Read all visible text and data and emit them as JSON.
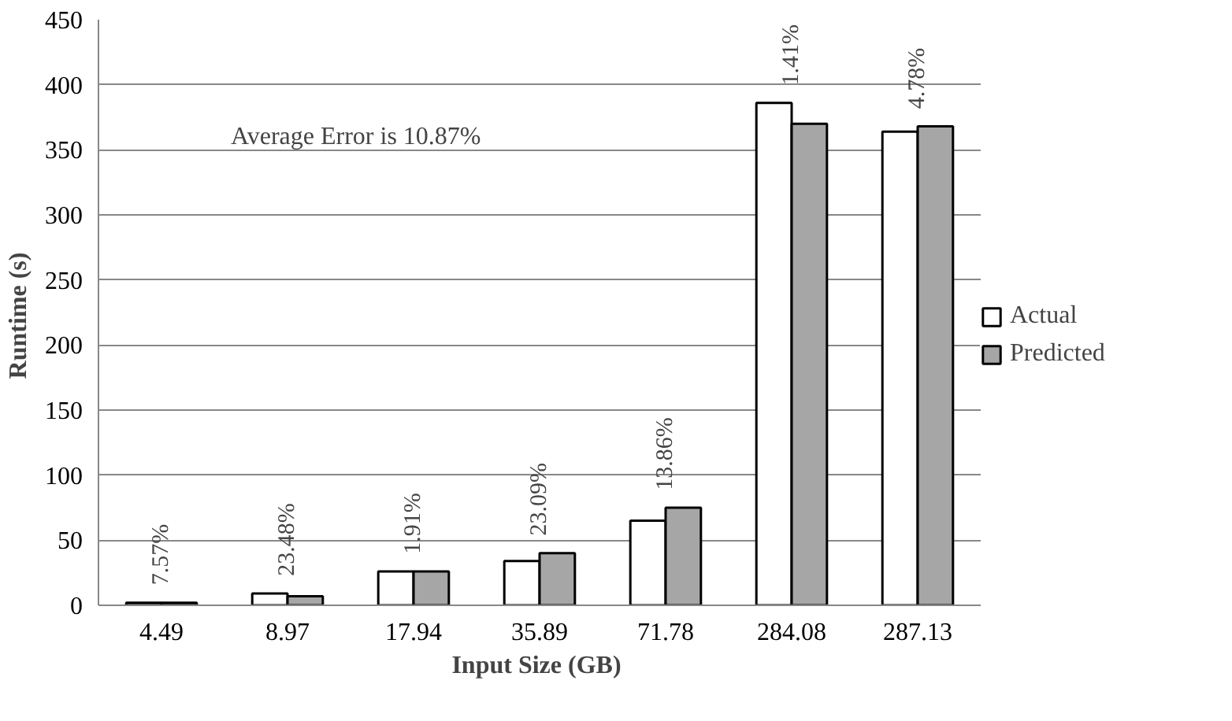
{
  "chart_data": {
    "type": "bar",
    "xlabel": "Input  Size (GB)",
    "ylabel": "Runtime  (s)",
    "categories": [
      "4.49",
      "8.97",
      "17.94",
      "35.89",
      "71.78",
      "284.08",
      "287.13"
    ],
    "series": [
      {
        "name": "Actual",
        "color": "#ffffff",
        "values": [
          2,
          9,
          26,
          34,
          65,
          386,
          364
        ]
      },
      {
        "name": "Predicted",
        "color": "#a6a6a6",
        "values": [
          2,
          7,
          26,
          40,
          75,
          370,
          368
        ]
      }
    ],
    "ylim": [
      0,
      450
    ],
    "yticks": [
      0,
      50,
      100,
      150,
      200,
      250,
      300,
      350,
      400,
      450
    ],
    "grid": "y",
    "legend": "right",
    "annotations": [
      "Average Error  is  10.87%",
      "7.57%",
      "23.48%",
      "1.91%",
      "23.09%",
      "13.86%",
      "1.41%",
      "4.78%"
    ]
  }
}
